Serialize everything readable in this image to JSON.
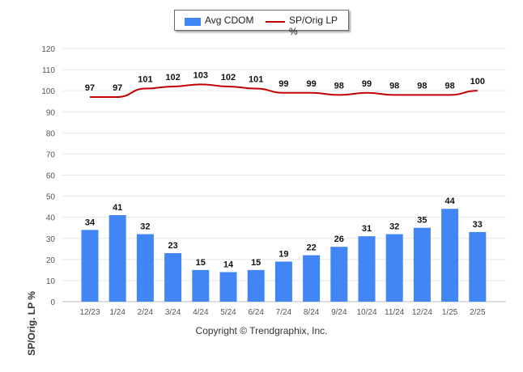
{
  "legend": {
    "bar_label": "Avg CDOM",
    "line_label": "SP/Orig LP %"
  },
  "credit": "Copyright © Trendgraphix, Inc.",
  "chart_data": {
    "type": "bar",
    "categories": [
      "12/23",
      "1/24",
      "2/24",
      "3/24",
      "4/24",
      "5/24",
      "6/24",
      "7/24",
      "8/24",
      "9/24",
      "10/24",
      "11/24",
      "12/24",
      "1/25",
      "2/25"
    ],
    "ylabel": "SP/Orig. LP %",
    "xlabel": "",
    "ylim": [
      0,
      120
    ],
    "yticks": [
      0,
      10,
      20,
      30,
      40,
      50,
      60,
      70,
      80,
      90,
      100,
      110,
      120
    ],
    "grid": true,
    "legend_position": "top-center",
    "series": [
      {
        "name": "Avg CDOM",
        "type": "bar",
        "color": "#4285f4",
        "values": [
          34,
          41,
          32,
          23,
          15,
          14,
          15,
          19,
          22,
          26,
          31,
          32,
          35,
          44,
          33
        ]
      },
      {
        "name": "SP/Orig LP %",
        "type": "line",
        "color": "#c00000",
        "values": [
          97,
          97,
          101,
          102,
          103,
          102,
          101,
          99,
          99,
          98,
          99,
          98,
          98,
          98,
          100
        ]
      }
    ]
  }
}
